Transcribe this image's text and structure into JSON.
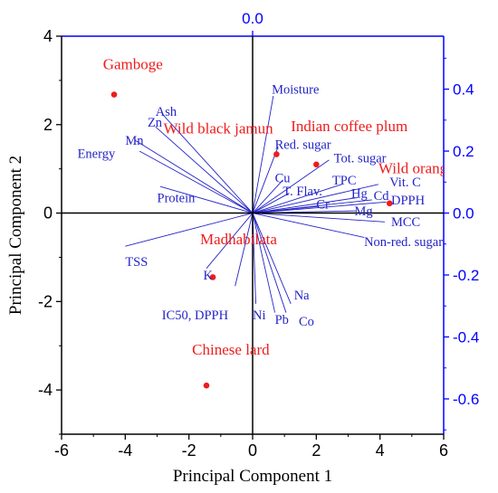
{
  "chart_data": {
    "type": "scatter",
    "title": "",
    "xlabel": "Principal Component 1",
    "ylabel": "Principal Component 2",
    "xlim": [
      -6,
      6
    ],
    "ylim": [
      -5,
      4
    ],
    "x_ticks": [
      "-6",
      "-4",
      "-2",
      "0",
      "2",
      "4",
      "6"
    ],
    "y_ticks": [
      "-4",
      "-2",
      "0",
      "2",
      "4"
    ],
    "x_tick_values": [
      -6,
      -4,
      -2,
      0,
      2,
      4,
      6
    ],
    "y_tick_values": [
      -4,
      -2,
      0,
      2,
      4
    ],
    "secondary_y": {
      "lim": [
        -0.714,
        0.571
      ],
      "ticks": [
        "-0.6",
        "-0.4",
        "-0.2",
        "0.0",
        "0.2",
        "0.4"
      ],
      "tick_values": [
        -0.6,
        -0.4,
        -0.2,
        0.0,
        0.2,
        0.4
      ],
      "color": "#0000ff"
    },
    "secondary_x_tick": "0.0",
    "grid": false,
    "colors": {
      "scores": "#ee1c1c",
      "loadings": "#2424c8",
      "secondary_axis": "#0000ff"
    },
    "scores": [
      {
        "name": "Gamboge",
        "x": -4.35,
        "y": 2.68
      },
      {
        "name": "Wild black jamun",
        "x": 0.75,
        "y": 1.33
      },
      {
        "name": "Indian coffee plum",
        "x": 2.0,
        "y": 1.1
      },
      {
        "name": "Wild orange",
        "x": 4.3,
        "y": 0.22
      },
      {
        "name": "Madhabilata",
        "x": -1.25,
        "y": -1.45
      },
      {
        "name": "Chinese lard",
        "x": -1.45,
        "y": -3.9
      }
    ],
    "score_labels": [
      {
        "text": "Gamboge",
        "x": -4.7,
        "y": 3.25
      },
      {
        "text": "Wild black jamun",
        "x": -2.8,
        "y": 1.8
      },
      {
        "text": "Indian coffee plum",
        "x": 1.2,
        "y": 1.85
      },
      {
        "text": "Wild orange",
        "x": 3.95,
        "y": 0.9
      },
      {
        "text": "Madhabilata",
        "x": -1.65,
        "y": -0.7
      },
      {
        "text": "Chinese lard",
        "x": -1.9,
        "y": -3.2
      }
    ],
    "loadings": [
      {
        "name": "Moisture",
        "x": 0.65,
        "y": 2.65,
        "lx": 0.6,
        "ly": 2.7
      },
      {
        "name": "Ash",
        "x": -2.85,
        "y": 2.25,
        "lx": -3.05,
        "ly": 2.2
      },
      {
        "name": "Zn",
        "x": -3.05,
        "y": 1.95,
        "lx": -3.3,
        "ly": 1.95
      },
      {
        "name": "Mn",
        "x": -3.7,
        "y": 1.65,
        "lx": -4.0,
        "ly": 1.55
      },
      {
        "name": "Energy",
        "x": -3.55,
        "y": 1.4,
        "lx": -5.5,
        "ly": 1.25
      },
      {
        "name": "Red. sugar",
        "x": 0.8,
        "y": 1.5,
        "lx": 0.7,
        "ly": 1.45
      },
      {
        "name": "Tot. sugar",
        "x": 2.4,
        "y": 1.2,
        "lx": 2.55,
        "ly": 1.15
      },
      {
        "name": "Cu",
        "x": 0.95,
        "y": 0.75,
        "lx": 0.7,
        "ly": 0.7
      },
      {
        "name": "TPC",
        "x": 2.8,
        "y": 0.65,
        "lx": 2.5,
        "ly": 0.65
      },
      {
        "name": "T. Flav.",
        "x": 1.15,
        "y": 0.45,
        "lx": 0.95,
        "ly": 0.4
      },
      {
        "name": "Vit. C",
        "x": 3.95,
        "y": 0.65,
        "lx": 4.3,
        "ly": 0.6
      },
      {
        "name": "Hg",
        "x": 3.3,
        "y": 0.35,
        "lx": 3.1,
        "ly": 0.35
      },
      {
        "name": "Cd",
        "x": 3.75,
        "y": 0.3,
        "lx": 3.8,
        "ly": 0.3
      },
      {
        "name": "Cr",
        "x": 2.05,
        "y": 0.15,
        "lx": 2.0,
        "ly": 0.1
      },
      {
        "name": "Mg",
        "x": 3.25,
        "y": 0.05,
        "lx": 3.2,
        "ly": -0.05
      },
      {
        "name": "DPPH",
        "x": 4.2,
        "y": 0.25,
        "lx": 4.35,
        "ly": 0.2
      },
      {
        "name": "MCC",
        "x": 4.15,
        "y": -0.2,
        "lx": 4.35,
        "ly": -0.3
      },
      {
        "name": "Non-red. sugar",
        "x": 3.5,
        "y": -0.55,
        "lx": 3.5,
        "ly": -0.75
      },
      {
        "name": "Protein",
        "x": -2.9,
        "y": 0.6,
        "lx": -3.0,
        "ly": 0.25
      },
      {
        "name": "TSS",
        "x": -4.0,
        "y": -0.75,
        "lx": -4.0,
        "ly": -1.2
      },
      {
        "name": "K",
        "x": -1.45,
        "y": -1.25,
        "lx": -1.55,
        "ly": -1.5
      },
      {
        "name": "IC50, DPPH",
        "x": -0.55,
        "y": -1.65,
        "lx": -2.85,
        "ly": -2.4
      },
      {
        "name": "Ni",
        "x": 0.1,
        "y": -2.05,
        "lx": 0.0,
        "ly": -2.4
      },
      {
        "name": "Na",
        "x": 1.2,
        "y": -2.05,
        "lx": 1.3,
        "ly": -1.95
      },
      {
        "name": "Pb",
        "x": 0.7,
        "y": -2.25,
        "lx": 0.7,
        "ly": -2.5
      },
      {
        "name": "Co",
        "x": 1.05,
        "y": -2.25,
        "lx": 1.45,
        "ly": -2.55
      }
    ]
  }
}
